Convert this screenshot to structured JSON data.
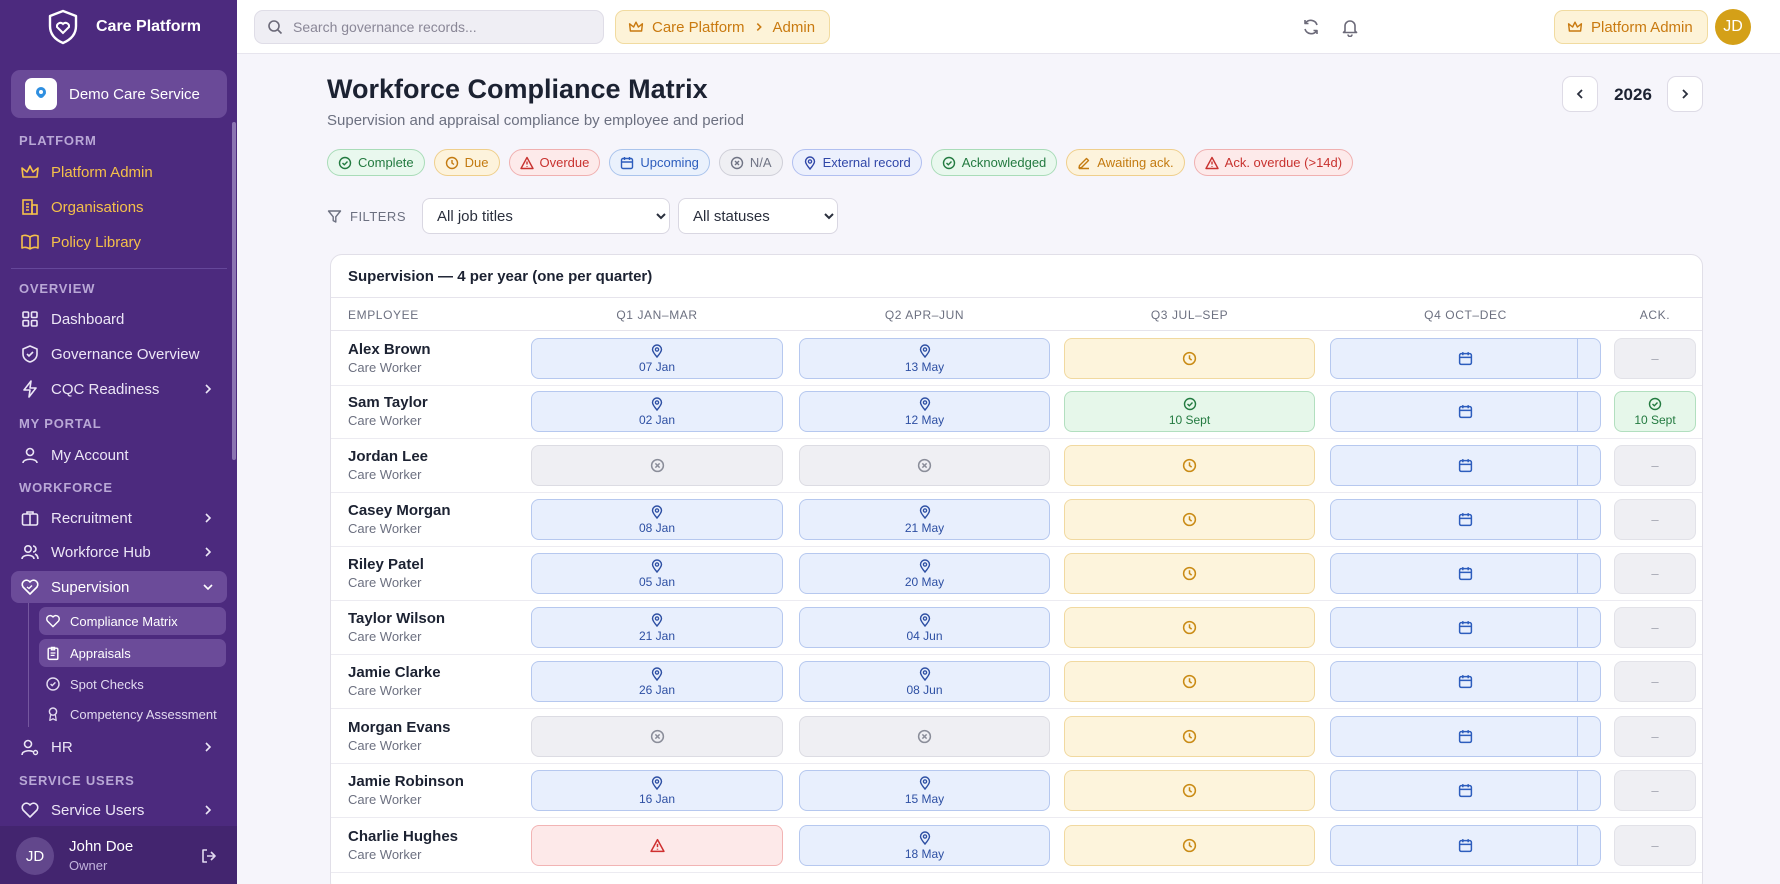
{
  "app": {
    "name": "Care Platform"
  },
  "organisation": {
    "name": "Demo Care Service"
  },
  "sidebar": {
    "sections": {
      "platform": "PLATFORM",
      "overview": "OVERVIEW",
      "my_portal": "MY PORTAL",
      "workforce": "WORKFORCE",
      "service_users": "SERVICE USERS"
    },
    "items": {
      "platform_admin": "Platform Admin",
      "organisations": "Organisations",
      "policy_library": "Policy Library",
      "dashboard": "Dashboard",
      "governance_overview": "Governance Overview",
      "cqc_readiness": "CQC Readiness",
      "my_account": "My Account",
      "recruitment": "Recruitment",
      "workforce_hub": "Workforce Hub",
      "supervision": "Supervision",
      "hr": "HR",
      "service_users": "Service Users"
    },
    "sub_items": {
      "compliance_matrix": "Compliance Matrix",
      "appraisals": "Appraisals",
      "spot_checks": "Spot Checks",
      "competency_assessment": "Competency Assessment"
    },
    "user": {
      "initials": "JD",
      "name": "John Doe",
      "role": "Owner"
    }
  },
  "topbar": {
    "search_placeholder": "Search governance records...",
    "breadcrumb": [
      "Care Platform",
      "Admin"
    ],
    "role_pill": "Platform Admin",
    "avatar_initials": "JD"
  },
  "page": {
    "title": "Workforce Compliance Matrix",
    "subtitle": "Supervision and appraisal compliance by employee and period",
    "year": "2026"
  },
  "legend": {
    "complete": "Complete",
    "due": "Due",
    "overdue": "Overdue",
    "upcoming": "Upcoming",
    "na": "N/A",
    "external": "External record",
    "acknowledged": "Acknowledged",
    "awaiting": "Awaiting ack.",
    "ack_overdue": "Ack. overdue (>14d)"
  },
  "filters": {
    "label": "FILTERS",
    "job_title": "All job titles",
    "status": "All statuses"
  },
  "matrix": {
    "title": "Supervision — 4 per year (one per quarter)",
    "columns": {
      "employee": "EMPLOYEE",
      "q1": "Q1 JAN–MAR",
      "q2": "Q2 APR–JUN",
      "q3": "Q3 JUL–SEP",
      "q4": "Q4 OCT–DEC",
      "ack": "ACK."
    },
    "dash": "–",
    "rows": [
      {
        "name": "Alex Brown",
        "role": "Care Worker",
        "q1": "07 Jan",
        "q2": "13 May",
        "q3": "",
        "ack": ""
      },
      {
        "name": "Sam Taylor",
        "role": "Care Worker",
        "q1": "02 Jan",
        "q2": "12 May",
        "q3": "10 Sept",
        "ack": "10 Sept"
      },
      {
        "name": "Jordan Lee",
        "role": "Care Worker",
        "q1": "",
        "q2": "",
        "q3": "",
        "ack": ""
      },
      {
        "name": "Casey Morgan",
        "role": "Care Worker",
        "q1": "08 Jan",
        "q2": "21 May",
        "q3": "",
        "ack": ""
      },
      {
        "name": "Riley Patel",
        "role": "Care Worker",
        "q1": "05 Jan",
        "q2": "20 May",
        "q3": "",
        "ack": ""
      },
      {
        "name": "Taylor Wilson",
        "role": "Care Worker",
        "q1": "21 Jan",
        "q2": "04 Jun",
        "q3": "",
        "ack": ""
      },
      {
        "name": "Jamie Clarke",
        "role": "Care Worker",
        "q1": "26 Jan",
        "q2": "08 Jun",
        "q3": "",
        "ack": ""
      },
      {
        "name": "Morgan Evans",
        "role": "Care Worker",
        "q1": "",
        "q2": "",
        "q3": "",
        "ack": ""
      },
      {
        "name": "Jamie Robinson",
        "role": "Care Worker",
        "q1": "16 Jan",
        "q2": "15 May",
        "q3": "",
        "ack": ""
      },
      {
        "name": "Charlie Hughes",
        "role": "Care Worker",
        "q1": "",
        "q2": "18 May",
        "q3": "",
        "ack": ""
      }
    ]
  }
}
